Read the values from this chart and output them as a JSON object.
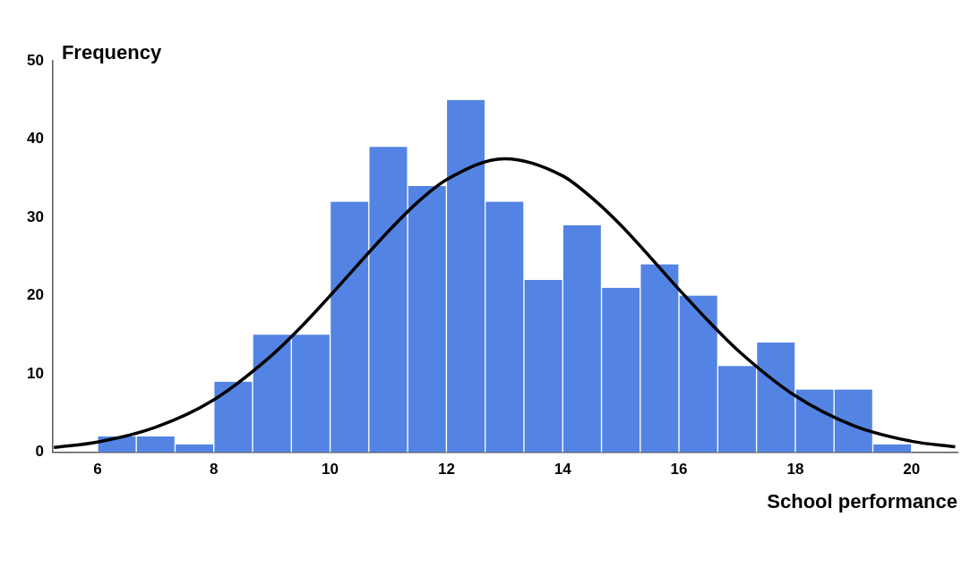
{
  "chart_data": {
    "type": "histogram",
    "xlabel": "School performance",
    "ylabel": "Frequency",
    "bins": [
      6,
      6.667,
      7.333,
      8,
      8.667,
      9.333,
      10,
      10.667,
      11.333,
      12,
      12.667,
      13.333,
      14,
      14.667,
      15.333,
      16,
      16.667,
      17.333,
      18,
      18.667,
      19.333,
      20
    ],
    "values": [
      2,
      2,
      1,
      9,
      15,
      15,
      32,
      39,
      34,
      45,
      32,
      22,
      29,
      21,
      24,
      20,
      11,
      14,
      8,
      8,
      1
    ],
    "color": "#5383e3",
    "series": [
      {
        "type": "line",
        "color": "#000000",
        "x": [
          5.25,
          6,
          7,
          8,
          9,
          9.5,
          10,
          11,
          11.5,
          12,
          13,
          14,
          14.5,
          15,
          16,
          16.5,
          17,
          18,
          19,
          20,
          20.75
        ],
        "values": [
          0.6,
          1.3,
          3.2,
          6.7,
          12.4,
          16,
          20,
          28.2,
          31.9,
          34.8,
          37.5,
          35.3,
          32.5,
          29,
          20.8,
          16.8,
          13.1,
          7.2,
          3.4,
          1.4,
          0.7
        ]
      }
    ],
    "xlim": [
      5.23,
      20.79
    ],
    "xticks": [
      6,
      8,
      10,
      12,
      14,
      16,
      18,
      20
    ],
    "ylim": [
      0,
      50
    ],
    "yticks": [
      0,
      10,
      20,
      30,
      40,
      50
    ],
    "grid": false,
    "legend": false,
    "marker": "none",
    "line_style": "solid"
  }
}
